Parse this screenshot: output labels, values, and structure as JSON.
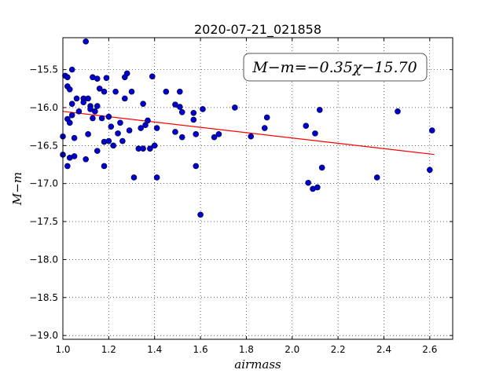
{
  "chart_data": {
    "type": "scatter",
    "title": "2020-07-21_021858",
    "xlabel": "airmass",
    "ylabel": "M−m",
    "xlim": [
      1.0,
      2.7
    ],
    "ylim": [
      -19.05,
      -15.08
    ],
    "y_inverted": true,
    "grid": true,
    "xticks": [
      1.0,
      1.2,
      1.4,
      1.6,
      1.8,
      2.0,
      2.2,
      2.4,
      2.6
    ],
    "xtick_labels": [
      "1.0",
      "1.2",
      "1.4",
      "1.6",
      "1.8",
      "2.0",
      "2.2",
      "2.4",
      "2.6"
    ],
    "yticks": [
      -15.5,
      -16.0,
      -16.5,
      -17.0,
      -17.5,
      -18.0,
      -18.5,
      -19.0
    ],
    "ytick_labels": [
      "−15.5",
      "−16.0",
      "−16.5",
      "−17.0",
      "−17.5",
      "−18.0",
      "−18.5",
      "−19.0"
    ],
    "annotation": "M−m=−0.35χ−15.70",
    "point_color": "#0000cc",
    "fit_color": "#ff0000",
    "fit_line": {
      "slope": -0.35,
      "intercept": -15.7,
      "x_range": [
        1.0,
        2.62
      ]
    },
    "points": [
      [
        1.0,
        -16.38
      ],
      [
        1.0,
        -16.62
      ],
      [
        1.01,
        -15.58
      ],
      [
        1.02,
        -15.6
      ],
      [
        1.02,
        -15.72
      ],
      [
        1.02,
        -16.15
      ],
      [
        1.02,
        -16.77
      ],
      [
        1.03,
        -15.76
      ],
      [
        1.03,
        -16.2
      ],
      [
        1.03,
        -16.66
      ],
      [
        1.04,
        -15.5
      ],
      [
        1.04,
        -15.95
      ],
      [
        1.04,
        -16.1
      ],
      [
        1.05,
        -16.4
      ],
      [
        1.05,
        -16.64
      ],
      [
        1.06,
        -15.88
      ],
      [
        1.07,
        -16.05
      ],
      [
        1.09,
        -15.88
      ],
      [
        1.09,
        -15.93
      ],
      [
        1.1,
        -15.13
      ],
      [
        1.1,
        -16.68
      ],
      [
        1.11,
        -15.88
      ],
      [
        1.11,
        -16.35
      ],
      [
        1.12,
        -15.98
      ],
      [
        1.12,
        -16.02
      ],
      [
        1.13,
        -15.6
      ],
      [
        1.13,
        -16.14
      ],
      [
        1.14,
        -16.05
      ],
      [
        1.15,
        -15.62
      ],
      [
        1.15,
        -15.98
      ],
      [
        1.15,
        -16.57
      ],
      [
        1.16,
        -15.75
      ],
      [
        1.17,
        -16.14
      ],
      [
        1.18,
        -15.79
      ],
      [
        1.18,
        -16.45
      ],
      [
        1.18,
        -16.77
      ],
      [
        1.19,
        -15.61
      ],
      [
        1.2,
        -16.12
      ],
      [
        1.2,
        -16.44
      ],
      [
        1.21,
        -16.25
      ],
      [
        1.22,
        -16.5
      ],
      [
        1.23,
        -15.79
      ],
      [
        1.24,
        -16.34
      ],
      [
        1.25,
        -16.2
      ],
      [
        1.26,
        -16.44
      ],
      [
        1.27,
        -15.88
      ],
      [
        1.27,
        -15.6
      ],
      [
        1.28,
        -15.55
      ],
      [
        1.29,
        -16.3
      ],
      [
        1.3,
        -15.79
      ],
      [
        1.31,
        -16.92
      ],
      [
        1.33,
        -16.54
      ],
      [
        1.34,
        -16.27
      ],
      [
        1.35,
        -15.95
      ],
      [
        1.35,
        -16.54
      ],
      [
        1.36,
        -16.23
      ],
      [
        1.37,
        -16.17
      ],
      [
        1.38,
        -16.54
      ],
      [
        1.39,
        -15.59
      ],
      [
        1.4,
        -16.5
      ],
      [
        1.41,
        -16.92
      ],
      [
        1.41,
        -16.27
      ],
      [
        1.45,
        -15.79
      ],
      [
        1.49,
        -16.32
      ],
      [
        1.49,
        -15.96
      ],
      [
        1.51,
        -15.79
      ],
      [
        1.51,
        -15.99
      ],
      [
        1.52,
        -16.06
      ],
      [
        1.52,
        -16.39
      ],
      [
        1.57,
        -16.07
      ],
      [
        1.57,
        -16.16
      ],
      [
        1.58,
        -16.35
      ],
      [
        1.58,
        -16.77
      ],
      [
        1.6,
        -17.41
      ],
      [
        1.61,
        -16.02
      ],
      [
        1.66,
        -16.39
      ],
      [
        1.68,
        -16.35
      ],
      [
        1.75,
        -16.0
      ],
      [
        1.82,
        -16.38
      ],
      [
        1.88,
        -16.27
      ],
      [
        1.89,
        -16.13
      ],
      [
        2.06,
        -16.24
      ],
      [
        2.07,
        -16.99
      ],
      [
        2.09,
        -17.07
      ],
      [
        2.1,
        -16.34
      ],
      [
        2.11,
        -17.05
      ],
      [
        2.12,
        -16.03
      ],
      [
        2.13,
        -16.79
      ],
      [
        2.37,
        -16.92
      ],
      [
        2.46,
        -16.05
      ],
      [
        2.6,
        -16.82
      ],
      [
        2.61,
        -16.3
      ]
    ]
  }
}
